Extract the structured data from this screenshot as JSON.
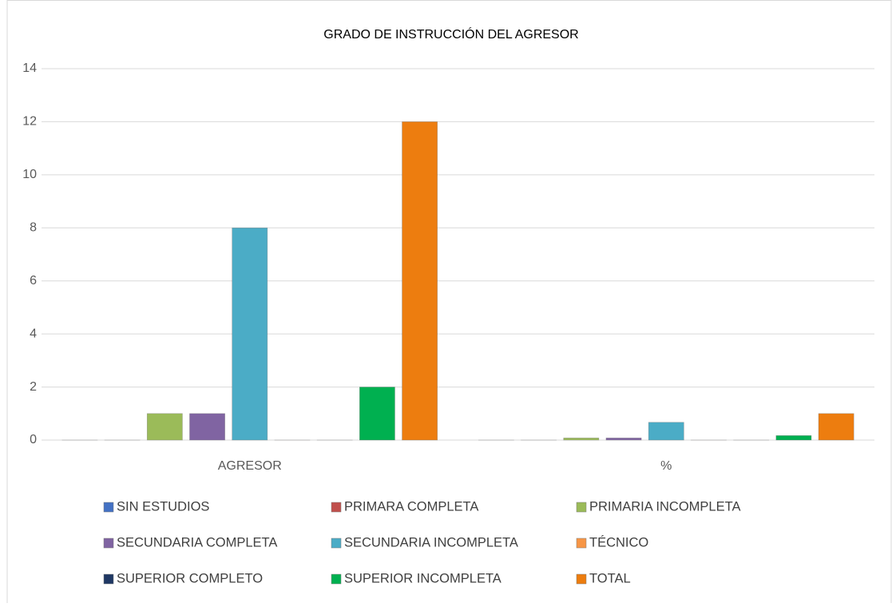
{
  "chart_data": {
    "type": "bar",
    "title": "GRADO DE INSTRUCCIÓN DEL AGRESOR",
    "categories": [
      "AGRESOR",
      "%"
    ],
    "series": [
      {
        "name": "SIN ESTUDIOS",
        "color": "#4472c4",
        "values": [
          0,
          0
        ]
      },
      {
        "name": "PRIMARA COMPLETA",
        "color": "#c0504d",
        "values": [
          0,
          0
        ]
      },
      {
        "name": "PRIMARIA INCOMPLETA",
        "color": "#9bbb59",
        "values": [
          1,
          0.08
        ]
      },
      {
        "name": "SECUNDARIA COMPLETA",
        "color": "#8064a2",
        "values": [
          1,
          0.08
        ]
      },
      {
        "name": "SECUNDARIA INCOMPLETA",
        "color": "#4bacc6",
        "values": [
          8,
          0.67
        ]
      },
      {
        "name": "TÉCNICO",
        "color": "#f79646",
        "values": [
          0,
          0
        ]
      },
      {
        "name": "SUPERIOR COMPLETO",
        "color": "#1f3864",
        "values": [
          0,
          0
        ]
      },
      {
        "name": "SUPERIOR INCOMPLETA",
        "color": "#00b050",
        "values": [
          2,
          0.17
        ]
      },
      {
        "name": "TOTAL",
        "color": "#ed7d0f",
        "values": [
          12,
          1
        ]
      }
    ],
    "ylim": [
      0,
      14
    ],
    "yticks": [
      0,
      2,
      4,
      6,
      8,
      10,
      12,
      14
    ],
    "grid": true,
    "legend": "bottom"
  }
}
